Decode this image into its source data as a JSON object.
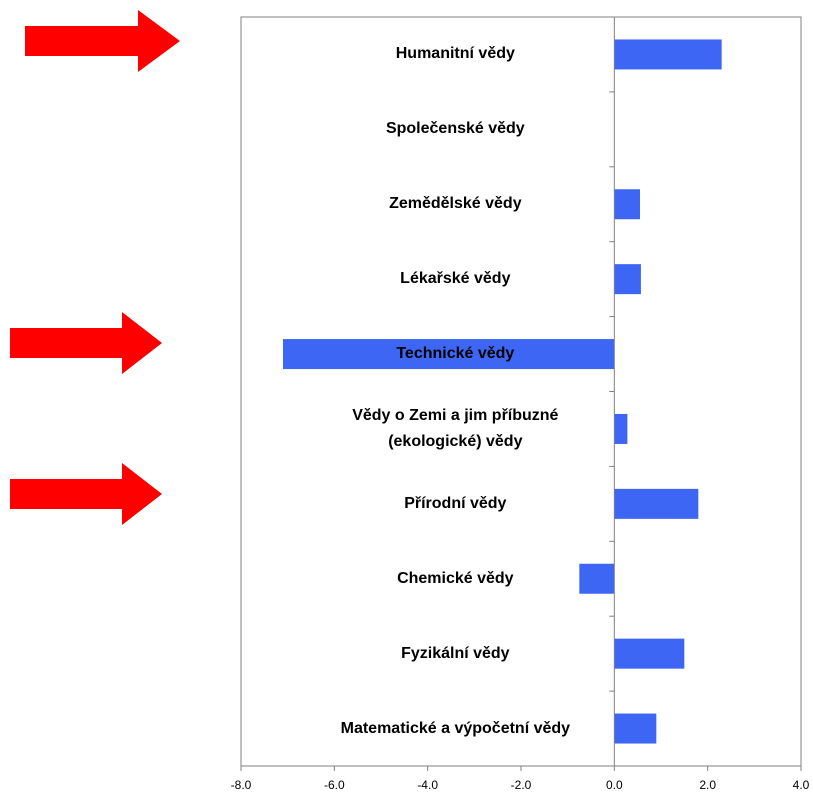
{
  "chart_data": {
    "type": "barh",
    "categories": [
      "Humanitní vědy",
      "Společenské vědy",
      "Zemědělské vědy",
      "Lékařské vědy",
      "Technické vědy",
      "Vědy o Zemi a jim příbuzné (ekologické) vědy",
      "Přírodní vědy",
      "Chemické vědy",
      "Fyzikální vědy",
      "Matematické a výpočetní vědy"
    ],
    "values": [
      2.3,
      0,
      0.55,
      0.57,
      -7.1,
      0.28,
      1.8,
      -0.75,
      1.5,
      0.9
    ],
    "color": "#3d66f5",
    "xlim": [
      -8,
      4
    ],
    "xticks": [
      {
        "value": -8,
        "label": "-8.0"
      },
      {
        "value": -6,
        "label": "-6.0"
      },
      {
        "value": -4,
        "label": "-4.0"
      },
      {
        "value": -2,
        "label": "-2.0"
      },
      {
        "value": 0,
        "label": "0.0"
      },
      {
        "value": 2,
        "label": "2.0"
      },
      {
        "value": 4,
        "label": "4.0"
      }
    ]
  }
}
